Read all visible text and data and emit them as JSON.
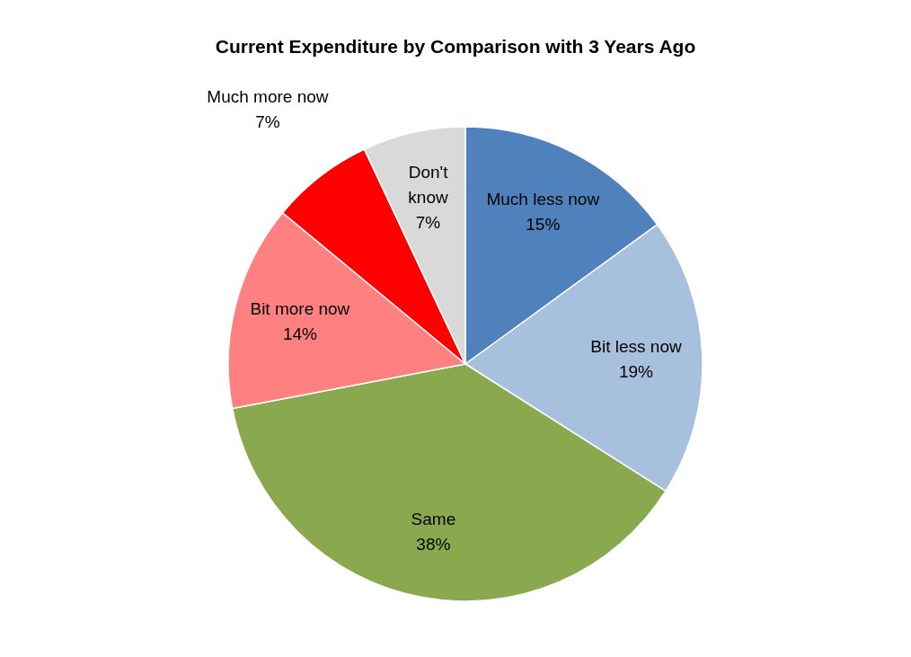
{
  "chart_data": {
    "type": "pie",
    "title": "Current Expenditure by Comparison with 3 Years Ago",
    "categories": [
      "Much less now",
      "Bit less now",
      "Same",
      "Bit more now",
      "Much more now",
      "Don't know"
    ],
    "values": [
      15,
      19,
      38,
      14,
      7,
      7
    ],
    "colors": [
      "#4f81bd",
      "#a7c0de",
      "#8aa84e",
      "#ff8080",
      "#ff0000",
      "#d9d9d9"
    ],
    "value_labels": [
      "15%",
      "19%",
      "38%",
      "14%",
      "7%",
      "7%"
    ],
    "legend": false
  }
}
